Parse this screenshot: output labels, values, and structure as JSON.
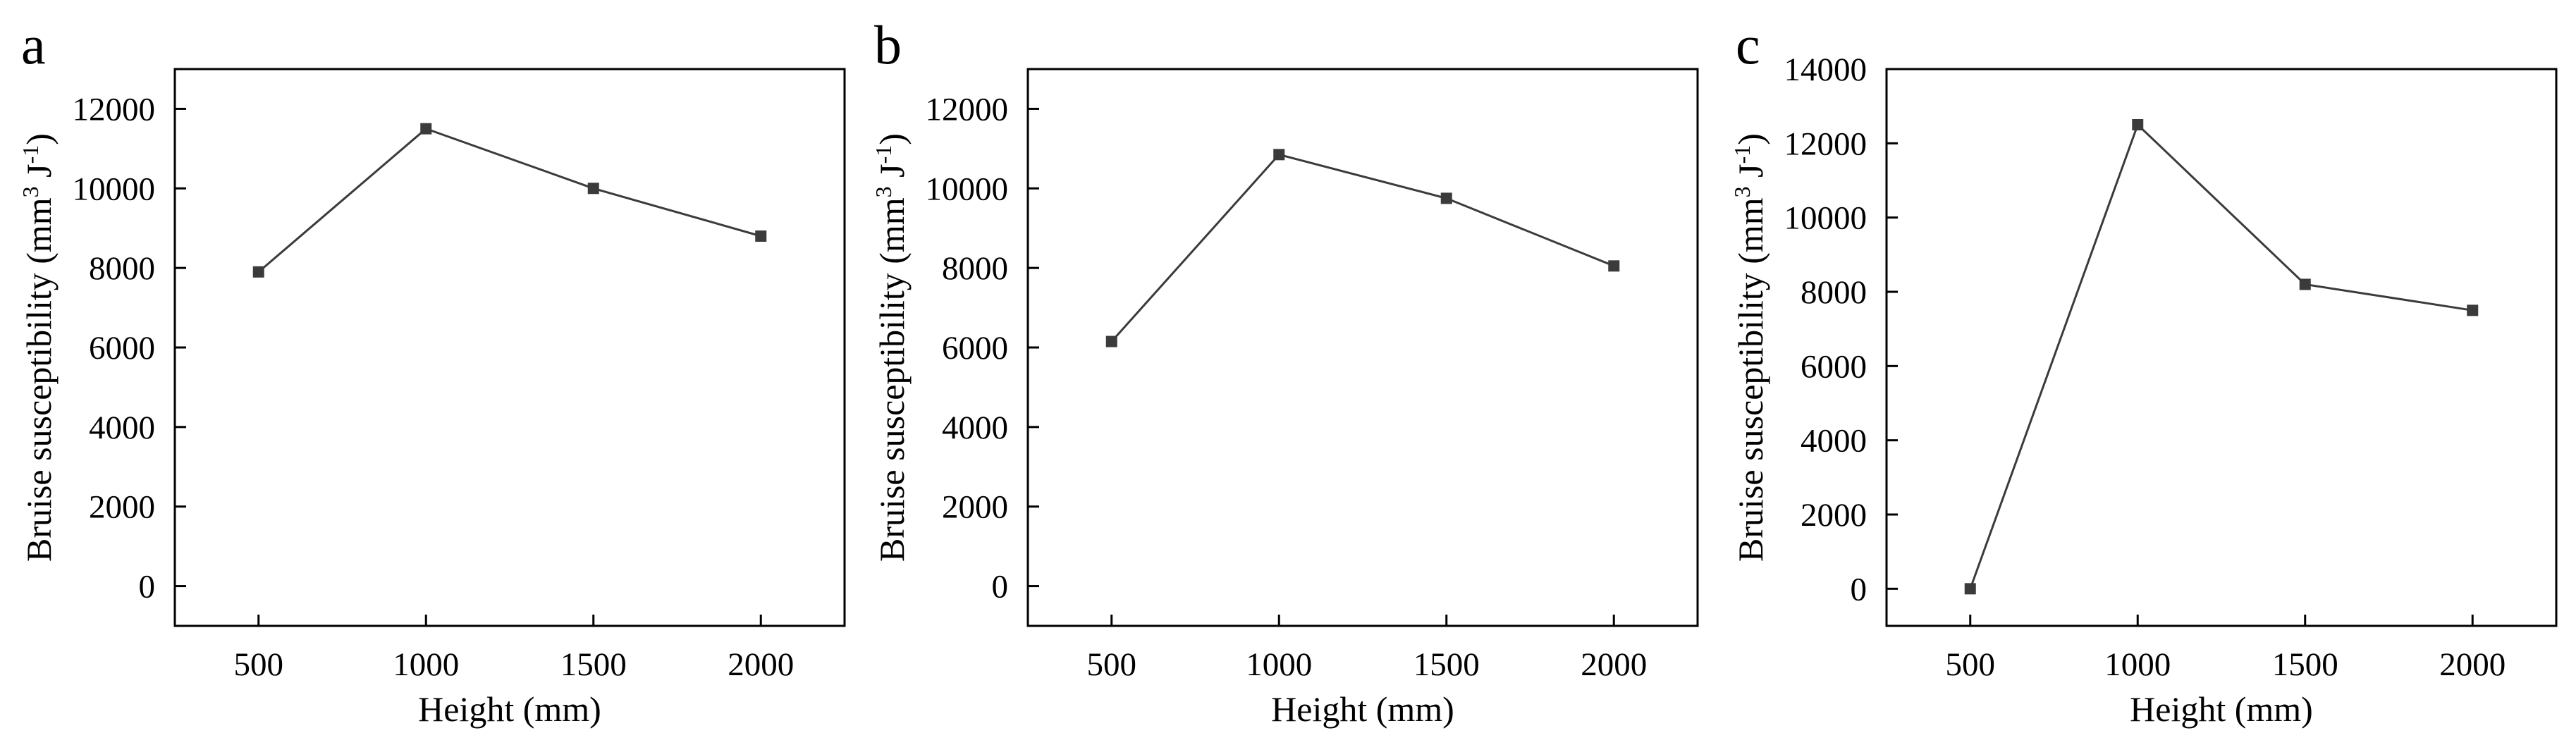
{
  "colors": {
    "line": "#3b3b3b",
    "marker": "#3b3b3b",
    "axis": "#000000",
    "background": "#ffffff"
  },
  "chart_data": [
    {
      "type": "line",
      "panel_label": "a",
      "title": "",
      "xlabel": "Height (mm)",
      "ylabel": {
        "base": "Bruise susceptibility (mm",
        "sup1": "3",
        "mid": " J",
        "sup2": "-1",
        "end": ")"
      },
      "x": [
        500,
        1000,
        1500,
        2000
      ],
      "xticks": [
        500,
        1000,
        1500,
        2000
      ],
      "xlim": [
        250,
        2250
      ],
      "yticks": [
        0,
        2000,
        4000,
        6000,
        8000,
        10000,
        12000
      ],
      "ylim": [
        -1000,
        13000
      ],
      "grid": false,
      "legend": "none",
      "series": [
        {
          "name": "Bruise susceptibility",
          "values": [
            7900,
            11500,
            10000,
            8800
          ]
        }
      ]
    },
    {
      "type": "line",
      "panel_label": "b",
      "title": "",
      "xlabel": "Height (mm)",
      "ylabel": {
        "base": "Bruise susceptibility (mm",
        "sup1": "3",
        "mid": " J",
        "sup2": "-1",
        "end": ")"
      },
      "x": [
        500,
        1000,
        1500,
        2000
      ],
      "xticks": [
        500,
        1000,
        1500,
        2000
      ],
      "xlim": [
        250,
        2250
      ],
      "yticks": [
        0,
        2000,
        4000,
        6000,
        8000,
        10000,
        12000
      ],
      "ylim": [
        -1000,
        13000
      ],
      "grid": false,
      "legend": "none",
      "series": [
        {
          "name": "Bruise susceptibility",
          "values": [
            6150,
            10850,
            9750,
            8050
          ]
        }
      ]
    },
    {
      "type": "line",
      "panel_label": "c",
      "title": "",
      "xlabel": "Height (mm)",
      "ylabel": {
        "base": "Bruise susceptibility (mm",
        "sup1": "3",
        "mid": " J",
        "sup2": "-1",
        "end": ")"
      },
      "x": [
        500,
        1000,
        1500,
        2000
      ],
      "xticks": [
        500,
        1000,
        1500,
        2000
      ],
      "xlim": [
        250,
        2250
      ],
      "yticks": [
        0,
        2000,
        4000,
        6000,
        8000,
        10000,
        12000,
        14000
      ],
      "ylim": [
        -1000,
        14000
      ],
      "grid": false,
      "legend": "none",
      "series": [
        {
          "name": "Bruise susceptibility",
          "values": [
            0,
            12500,
            8200,
            7500
          ]
        }
      ]
    }
  ]
}
